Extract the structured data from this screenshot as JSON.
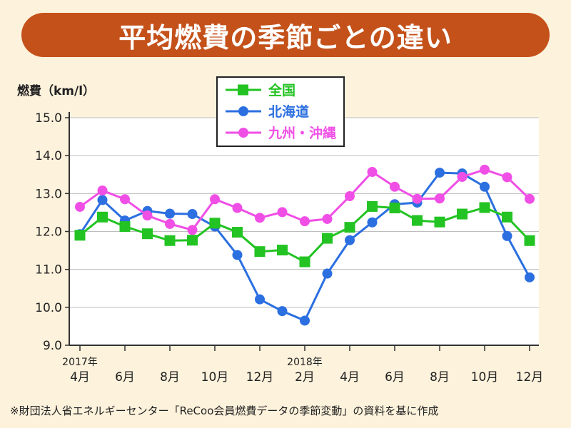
{
  "title": "平均燃費の季節ごとの違い",
  "source_note": "※財団法人省エネルギーセンター「ReCoo会員燃費データの季節変動」の資料を基に作成",
  "colors": {
    "banner": "#c4511a",
    "background": "#fdf2dc",
    "national": "#22c322",
    "hokkaido": "#2b6fe0",
    "kyushu": "#f04fe6"
  },
  "chart_data": {
    "type": "line",
    "ylabel": "燃費（km/l）",
    "ylim": [
      9.0,
      15.0
    ],
    "yticks": [
      "15.0",
      "14.0",
      "13.0",
      "12.0",
      "11.0",
      "10.0",
      "9.0"
    ],
    "xtick_labels": [
      "4月",
      "6月",
      "8月",
      "10月",
      "12月",
      "2月",
      "4月",
      "6月",
      "8月",
      "10月",
      "12月"
    ],
    "year_labels": [
      {
        "text": "2017年",
        "month_index": 0
      },
      {
        "text": "2018年",
        "month_index": 10
      }
    ],
    "months": [
      "2017-04",
      "2017-05",
      "2017-06",
      "2017-07",
      "2017-08",
      "2017-09",
      "2017-10",
      "2017-11",
      "2017-12",
      "2018-01",
      "2018-02",
      "2018-03",
      "2018-04",
      "2018-05",
      "2018-06",
      "2018-07",
      "2018-08",
      "2018-09",
      "2018-10",
      "2018-11",
      "2018-12"
    ],
    "series": [
      {
        "name": "全国",
        "marker": "square",
        "color": "#22c322",
        "values": [
          11.9,
          12.38,
          12.13,
          11.94,
          11.76,
          11.77,
          12.22,
          11.98,
          11.47,
          11.51,
          11.2,
          11.82,
          12.11,
          12.66,
          12.62,
          12.29,
          12.25,
          12.46,
          12.63,
          12.38,
          11.76
        ]
      },
      {
        "name": "北海道",
        "marker": "circle",
        "color": "#2b6fe0",
        "values": [
          11.93,
          12.83,
          12.29,
          12.54,
          12.47,
          12.46,
          12.13,
          11.38,
          10.21,
          9.9,
          9.65,
          10.89,
          11.77,
          12.24,
          12.72,
          12.76,
          13.55,
          13.53,
          13.18,
          11.88,
          10.79
        ]
      },
      {
        "name": "九州・沖縄",
        "marker": "circle",
        "color": "#f04fe6",
        "values": [
          12.65,
          13.08,
          12.85,
          12.42,
          12.2,
          12.04,
          12.85,
          12.62,
          12.36,
          12.51,
          12.27,
          12.33,
          12.93,
          13.57,
          13.18,
          12.86,
          12.87,
          13.44,
          13.63,
          13.43,
          12.86
        ]
      }
    ],
    "legend_position": "top-center"
  }
}
